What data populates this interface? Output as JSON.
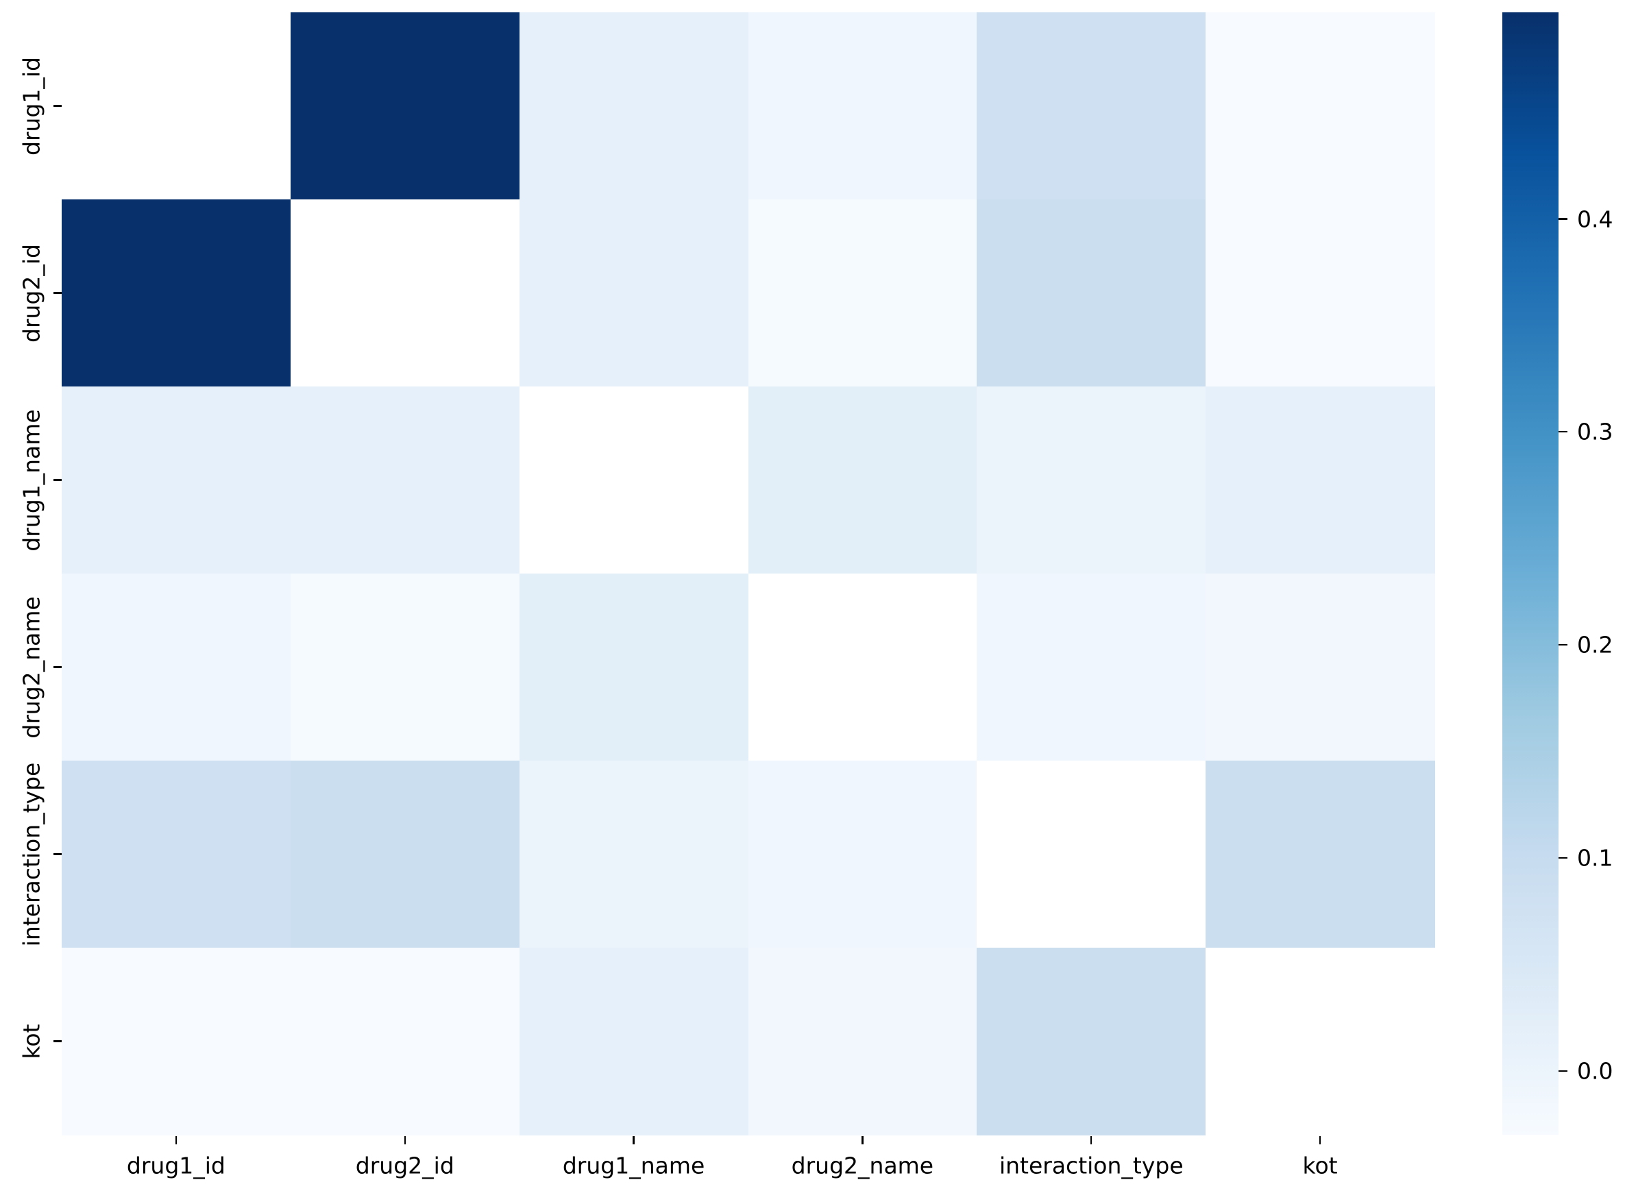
{
  "chart_data": {
    "type": "heatmap",
    "title": "",
    "categories": [
      "drug1_id",
      "drug2_id",
      "drug1_name",
      "drug2_name",
      "interaction_type",
      "kot"
    ],
    "x_tick_labels": [
      "drug1_id",
      "drug2_id",
      "drug1_name",
      "drug2_name",
      "interaction_type",
      "kot"
    ],
    "y_tick_labels": [
      "drug1_id",
      "drug2_id",
      "drug1_name",
      "drug2_name",
      "interaction_type",
      "kot"
    ],
    "matrix": [
      [
        null,
        0.497,
        0.015,
        -0.01,
        0.08,
        -0.03
      ],
      [
        0.497,
        null,
        0.015,
        -0.025,
        0.09,
        -0.03
      ],
      [
        0.015,
        0.015,
        null,
        0.025,
        0.0,
        0.015
      ],
      [
        -0.01,
        -0.025,
        0.025,
        null,
        -0.01,
        -0.015
      ],
      [
        0.08,
        0.09,
        0.0,
        -0.01,
        null,
        0.09
      ],
      [
        -0.03,
        -0.03,
        0.015,
        -0.015,
        0.09,
        null
      ]
    ],
    "diagonal_masked": true,
    "masked_color": "#ffffff",
    "colormap": "Blues",
    "colormap_stops": [
      "#f7fbff",
      "#deebf7",
      "#c6dbef",
      "#9ecae1",
      "#6baed6",
      "#4292c6",
      "#2171b5",
      "#08519c",
      "#08306b"
    ],
    "vmin": -0.03,
    "vmax": 0.497,
    "colorbar_ticks": [
      0.4,
      0.3,
      0.2,
      0.1,
      0.0
    ],
    "colorbar_tick_labels": [
      "0.4",
      "0.3",
      "0.2",
      "0.1",
      "0.0"
    ],
    "colorbar_position": "right",
    "grid": false,
    "background": "#ffffff",
    "tick_color": "#000000",
    "label_color": "#000000"
  }
}
